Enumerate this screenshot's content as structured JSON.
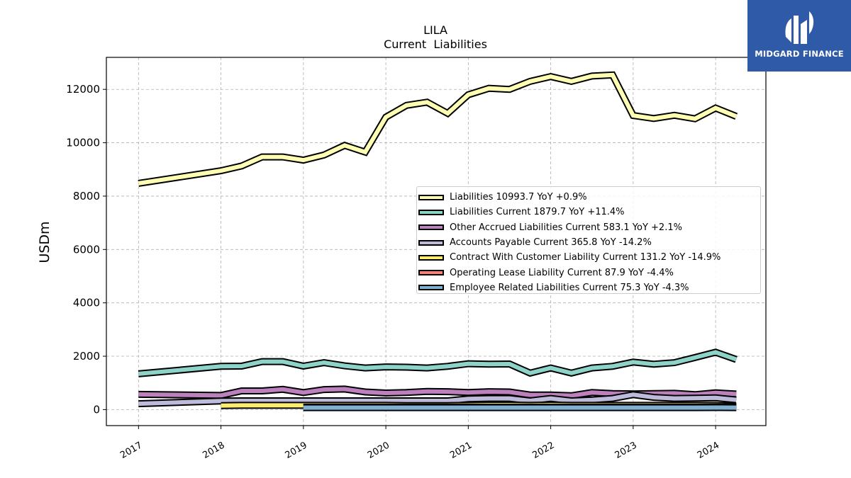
{
  "brand": {
    "name": "MIDGARD FINANCE",
    "color": "#2f5aa8"
  },
  "chart_data": {
    "type": "line",
    "title": "LILA",
    "subtitle": "Current  Liabilities",
    "ylabel": "USDm",
    "xlabel": "",
    "ylim": [
      -600,
      13200
    ],
    "xlim": [
      2016.61,
      2024.61
    ],
    "yticks": [
      0,
      2000,
      4000,
      6000,
      8000,
      10000,
      12000
    ],
    "xticks": [
      2017,
      2018,
      2019,
      2020,
      2021,
      2022,
      2023,
      2024
    ],
    "xtick_labels": [
      "2017",
      "2018",
      "2019",
      "2020",
      "2021",
      "2022",
      "2023",
      "2024"
    ],
    "grid": true,
    "legend_position": "center-right",
    "series": [
      {
        "name": "Liabilities",
        "legend_label": "Liabilities  10993.7 YoY +0.9%",
        "color": "#ffffb3",
        "x": [
          2017.0,
          2018.0,
          2018.25,
          2018.5,
          2018.75,
          2019.0,
          2019.25,
          2019.5,
          2019.75,
          2020.0,
          2020.25,
          2020.5,
          2020.75,
          2021.0,
          2021.25,
          2021.5,
          2021.75,
          2022.0,
          2022.25,
          2022.5,
          2022.75,
          2023.0,
          2023.25,
          2023.5,
          2023.75,
          2024.0,
          2024.25
        ],
        "values": [
          8480,
          8950,
          9130,
          9470,
          9470,
          9350,
          9540,
          9900,
          9650,
          10960,
          11400,
          11520,
          11100,
          11800,
          12040,
          12000,
          12300,
          12480,
          12300,
          12500,
          12540,
          11020,
          10910,
          11030,
          10900,
          11300,
          10990
        ]
      },
      {
        "name": "Liabilities Current",
        "legend_label": "Liabilities Current  1879.7 YoY +11.4%",
        "color": "#8dd3c7",
        "x": [
          2017.0,
          2018.0,
          2018.25,
          2018.5,
          2018.75,
          2019.0,
          2019.25,
          2019.5,
          2019.75,
          2020.0,
          2020.25,
          2020.5,
          2020.75,
          2021.0,
          2021.25,
          2021.5,
          2021.75,
          2022.0,
          2022.25,
          2022.5,
          2022.75,
          2023.0,
          2023.25,
          2023.5,
          2023.75,
          2024.0,
          2024.25
        ],
        "values": [
          1340,
          1620,
          1630,
          1800,
          1800,
          1630,
          1760,
          1640,
          1560,
          1600,
          1590,
          1560,
          1620,
          1720,
          1700,
          1710,
          1370,
          1560,
          1370,
          1560,
          1620,
          1780,
          1700,
          1760,
          1950,
          2150,
          1880
        ]
      },
      {
        "name": "Other Accrued Liabilities Current",
        "legend_label": "Other Accrued Liabilities Current  583.1 YoY +2.1%",
        "color": "#bc80bd",
        "x": [
          2017.0,
          2018.0,
          2018.25,
          2018.5,
          2018.75,
          2019.0,
          2019.25,
          2019.5,
          2019.75,
          2020.0,
          2020.25,
          2020.5,
          2020.75,
          2021.0,
          2021.25,
          2021.5,
          2021.75,
          2022.0,
          2022.25,
          2022.5,
          2022.75,
          2023.0,
          2023.25,
          2023.5,
          2023.75,
          2024.0,
          2024.25
        ],
        "values": [
          570,
          530,
          700,
          700,
          760,
          640,
          750,
          770,
          660,
          620,
          640,
          680,
          670,
          640,
          670,
          660,
          550,
          550,
          520,
          640,
          600,
          590,
          600,
          610,
          560,
          630,
          583
        ]
      },
      {
        "name": "Accounts Payable Current",
        "legend_label": "Accounts Payable Current  365.8 YoY -14.2%",
        "color": "#bebada",
        "x": [
          2017.0,
          2018.0,
          2018.25,
          2018.5,
          2018.75,
          2019.0,
          2019.25,
          2019.5,
          2019.75,
          2020.0,
          2020.25,
          2020.5,
          2020.75,
          2021.0,
          2021.25,
          2021.5,
          2021.75,
          2022.0,
          2022.25,
          2022.5,
          2022.75,
          2023.0,
          2023.25,
          2023.5,
          2023.75,
          2024.0,
          2024.25
        ],
        "values": [
          220,
          320,
          330,
          330,
          330,
          330,
          330,
          330,
          330,
          330,
          330,
          330,
          330,
          400,
          420,
          420,
          330,
          420,
          330,
          360,
          420,
          560,
          460,
          420,
          430,
          440,
          366
        ]
      },
      {
        "name": "Contract With Customer Liability Current",
        "legend_label": "Contract With Customer Liability Current  131.2 YoY -14.9%",
        "color": "#ffed6f",
        "x": [
          2018.0,
          2018.25,
          2018.5,
          2018.75,
          2019.0,
          2019.25,
          2019.5,
          2019.75,
          2020.0,
          2020.25,
          2020.5,
          2020.75,
          2021.0,
          2021.25,
          2021.5,
          2021.75,
          2022.0,
          2022.25,
          2022.5,
          2022.75,
          2023.0,
          2023.25,
          2023.5,
          2023.75,
          2024.0,
          2024.25
        ],
        "values": [
          150,
          160,
          160,
          160,
          160,
          160,
          160,
          160,
          160,
          150,
          150,
          150,
          160,
          170,
          170,
          160,
          170,
          160,
          160,
          160,
          160,
          160,
          160,
          160,
          155,
          131
        ]
      },
      {
        "name": "Operating Lease Liability Current",
        "legend_label": "Operating Lease Liability Current  87.9 YoY -4.4%",
        "color": "#fb8072",
        "x": [
          2019.0,
          2019.25,
          2019.5,
          2019.75,
          2020.0,
          2020.25,
          2020.5,
          2020.75,
          2021.0,
          2021.25,
          2021.5,
          2021.75,
          2022.0,
          2022.25,
          2022.5,
          2022.75,
          2023.0,
          2023.25,
          2023.5,
          2023.75,
          2024.0,
          2024.25
        ],
        "values": [
          90,
          90,
          90,
          90,
          90,
          90,
          90,
          90,
          90,
          90,
          90,
          90,
          90,
          90,
          90,
          90,
          90,
          90,
          90,
          90,
          92,
          88
        ]
      },
      {
        "name": "Employee Related Liabilities Current",
        "legend_label": "Employee Related Liabilities Current  75.3 YoY -4.3%",
        "color": "#80b1d3",
        "x": [
          2019.0,
          2019.25,
          2019.5,
          2019.75,
          2020.0,
          2020.25,
          2020.5,
          2020.75,
          2021.0,
          2021.25,
          2021.5,
          2021.75,
          2022.0,
          2022.25,
          2022.5,
          2022.75,
          2023.0,
          2023.25,
          2023.5,
          2023.75,
          2024.0,
          2024.25
        ],
        "values": [
          75,
          75,
          75,
          75,
          75,
          75,
          75,
          75,
          75,
          75,
          75,
          75,
          75,
          75,
          75,
          75,
          75,
          75,
          75,
          75,
          78,
          75
        ]
      }
    ]
  }
}
